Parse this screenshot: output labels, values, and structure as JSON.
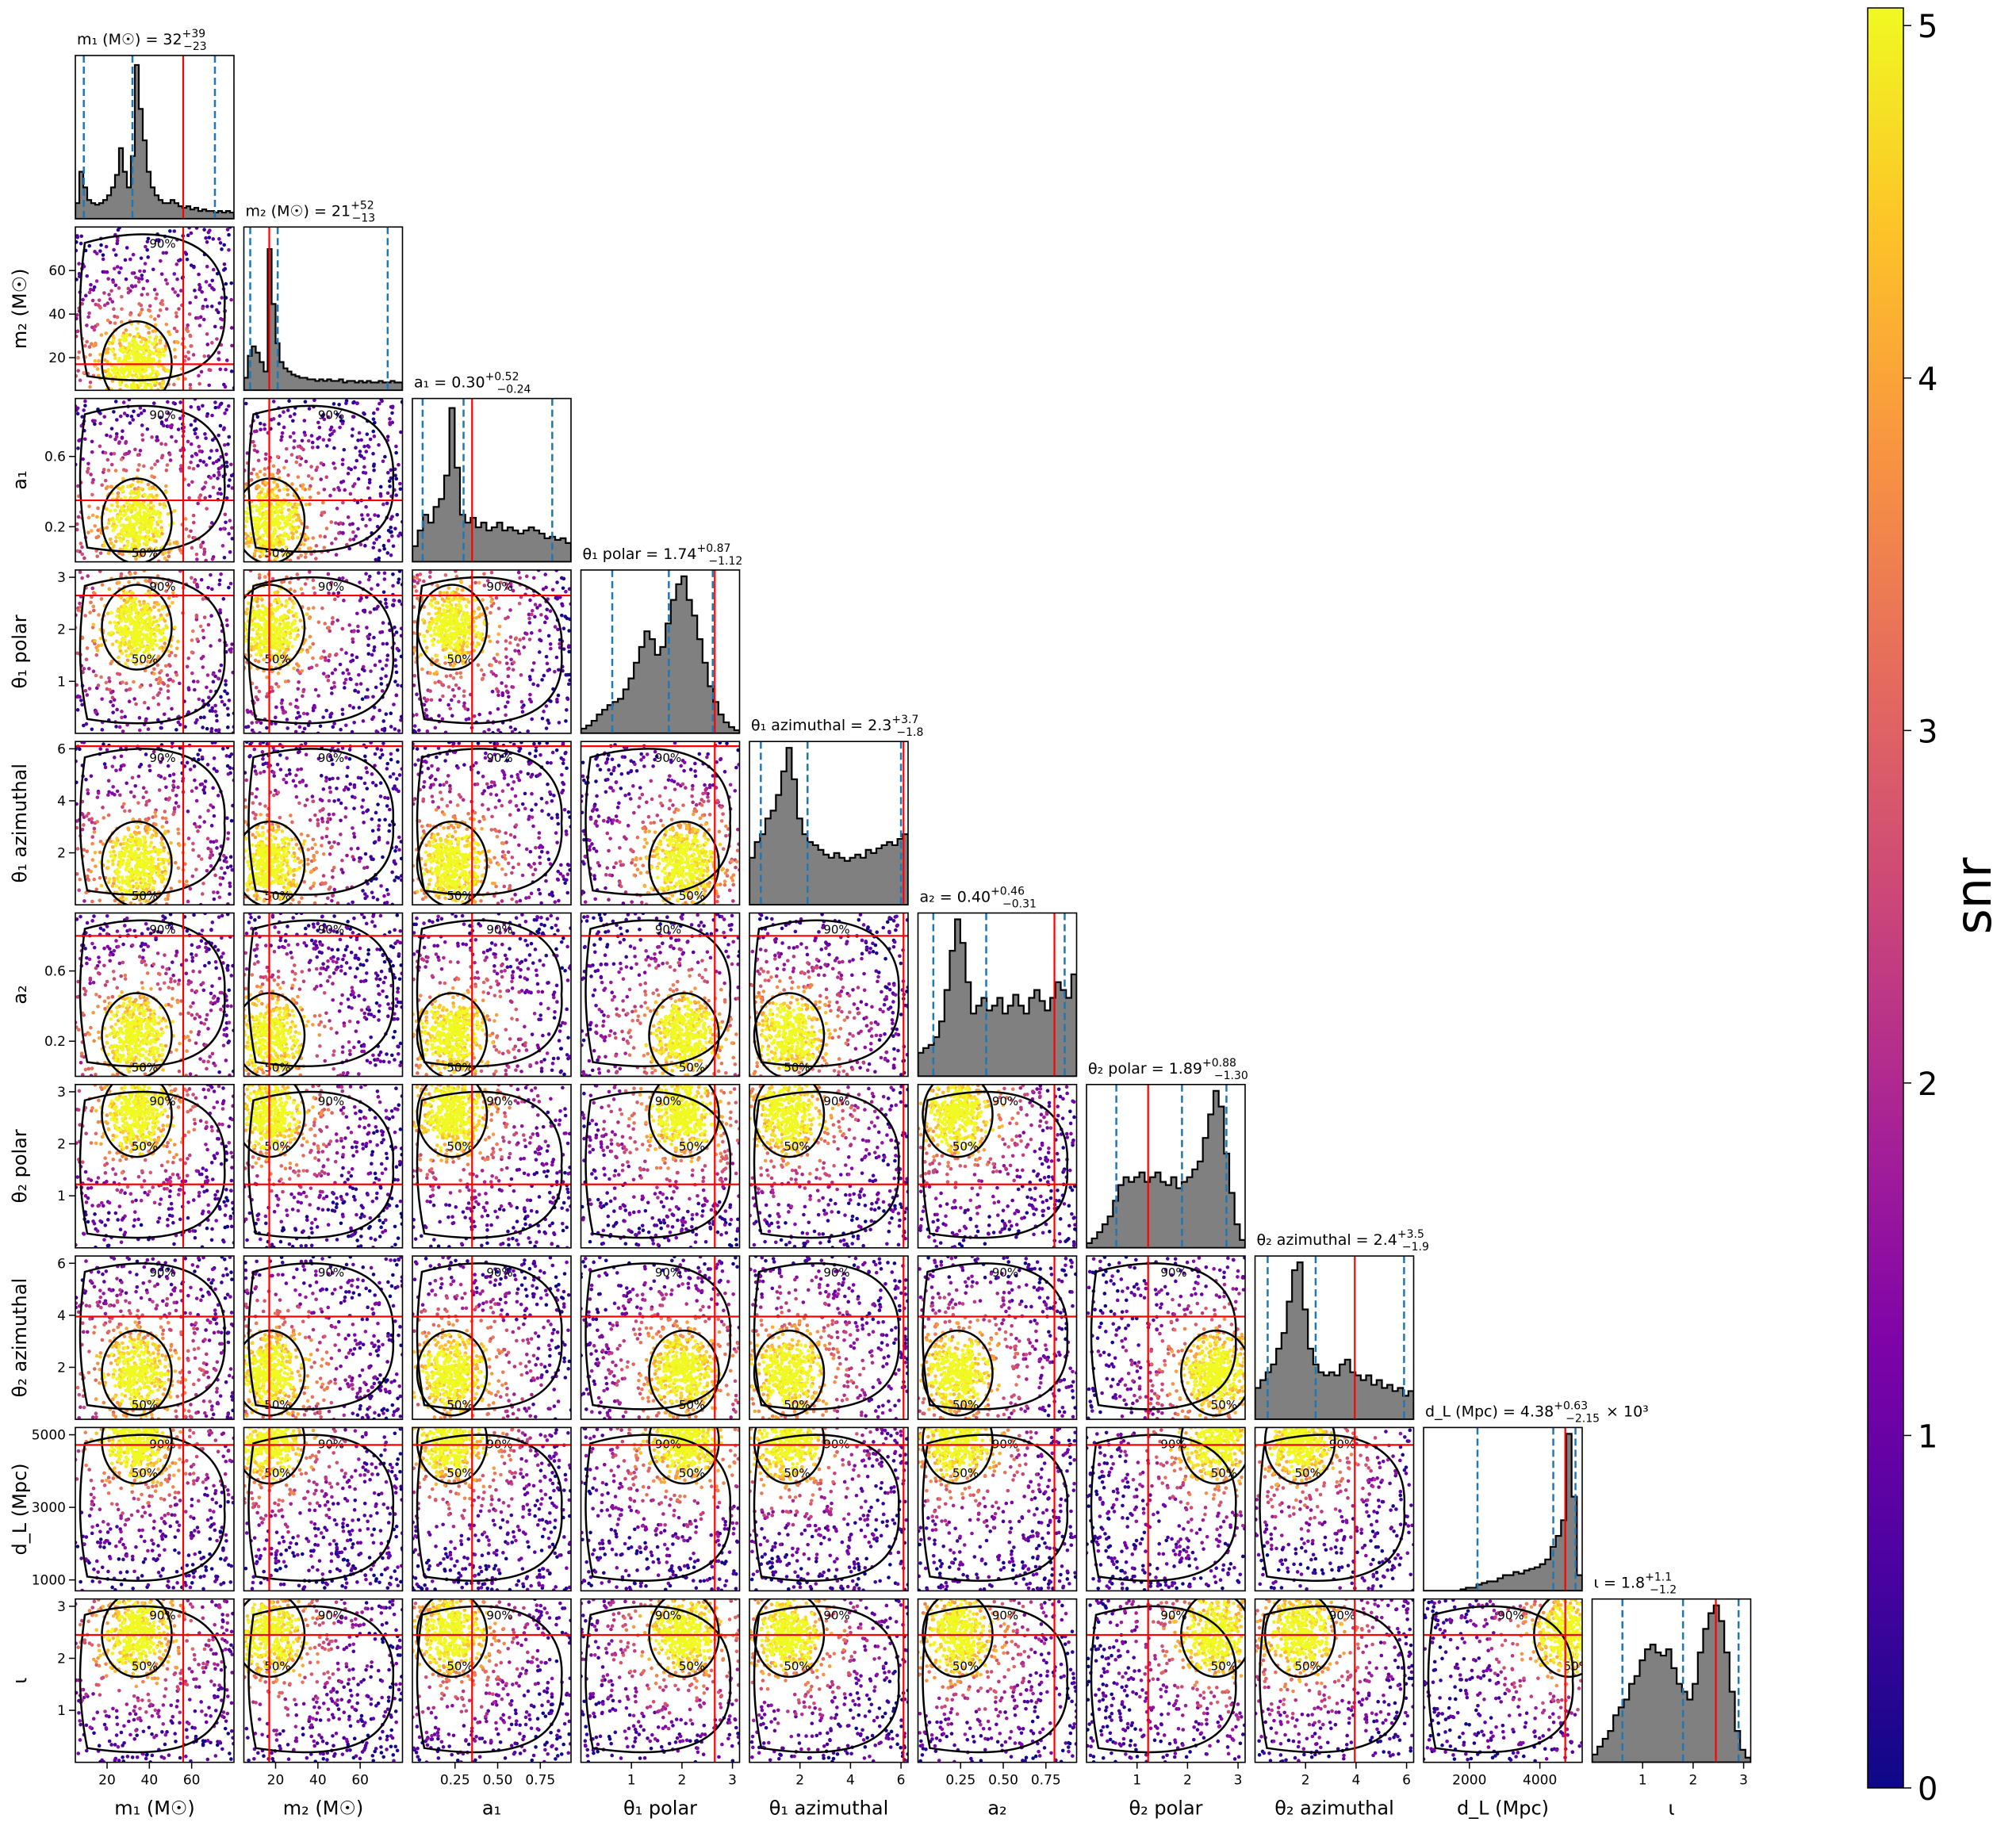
{
  "chart_data": {
    "type": "scatter",
    "subtype": "corner-plot",
    "scatter_color_variable": "snr",
    "colormap": "plasma",
    "colorbar": {
      "label": "snr",
      "range": [
        0,
        5.05
      ],
      "ticks": [
        "0",
        "1",
        "2",
        "3",
        "4",
        "5"
      ]
    },
    "contour_levels": [
      "50%",
      "90%"
    ],
    "histogram_color": "#808080",
    "credible_interval_line_color": "#1f77b4",
    "truth_line_color": "#ff0000",
    "parameters": [
      {
        "key": "m1",
        "axis_label": "m₁ (M☉)",
        "title": "m₁ (M☉) = 32",
        "sup": "+39",
        "sub": "−23",
        "range": [
          5,
          80
        ],
        "ticks": [
          20,
          40,
          60
        ],
        "tick_labels": [
          "20",
          "40",
          "60"
        ],
        "median": 32,
        "lower": 9,
        "upper": 71,
        "truth": 56,
        "hist": [
          0.1,
          0.3,
          0.2,
          0.12,
          0.1,
          0.09,
          0.1,
          0.12,
          0.15,
          0.2,
          0.28,
          0.45,
          0.3,
          0.2,
          0.4,
          0.98,
          0.7,
          0.5,
          0.3,
          0.2,
          0.15,
          0.12,
          0.1,
          0.1,
          0.12,
          0.1,
          0.08,
          0.07,
          0.08,
          0.06,
          0.07,
          0.05,
          0.06,
          0.05,
          0.05,
          0.04,
          0.05,
          0.04,
          0.05,
          0.04
        ]
      },
      {
        "key": "m2",
        "axis_label": "m₂ (M☉)",
        "title": "m₂ (M☉) = 21",
        "sup": "+52",
        "sub": "−13",
        "range": [
          5,
          80
        ],
        "ticks": [
          20,
          40,
          60
        ],
        "tick_labels": [
          "20",
          "40",
          "60"
        ],
        "median": 21,
        "lower": 8,
        "upper": 73,
        "truth": 17,
        "hist": [
          0.08,
          0.22,
          0.28,
          0.24,
          0.18,
          0.12,
          0.9,
          0.55,
          0.3,
          0.18,
          0.14,
          0.12,
          0.1,
          0.09,
          0.08,
          0.08,
          0.07,
          0.07,
          0.06,
          0.07,
          0.06,
          0.07,
          0.06,
          0.06,
          0.07,
          0.05,
          0.06,
          0.06,
          0.05,
          0.06,
          0.05,
          0.06,
          0.05,
          0.05,
          0.06,
          0.05,
          0.05,
          0.06,
          0.05,
          0.05
        ]
      },
      {
        "key": "a1",
        "axis_label": "a₁",
        "title": "a₁ = 0.30",
        "sup": "+0.52",
        "sub": "−0.24",
        "range": [
          0,
          0.93
        ],
        "ticks": [
          0.2,
          0.6
        ],
        "tick_labels": [
          "0.2",
          "0.6"
        ],
        "bottom_ticks": [
          0.25,
          0.5,
          0.75
        ],
        "bottom_tick_labels": [
          "0.25",
          "0.50",
          "0.75"
        ],
        "median": 0.3,
        "lower": 0.06,
        "upper": 0.82,
        "truth": 0.35,
        "hist": [
          0.1,
          0.2,
          0.3,
          0.25,
          0.35,
          0.4,
          0.55,
          0.98,
          0.6,
          0.3,
          0.25,
          0.28,
          0.22,
          0.25,
          0.2,
          0.22,
          0.25,
          0.2,
          0.22,
          0.2,
          0.18,
          0.2,
          0.22,
          0.2,
          0.18,
          0.15,
          0.16,
          0.14,
          0.15,
          0.12
        ]
      },
      {
        "key": "theta1_polar",
        "axis_label": "θ₁ polar",
        "title": "θ₁ polar = 1.74",
        "sup": "+0.87",
        "sub": "−1.12",
        "range": [
          0,
          3.14
        ],
        "ticks": [
          1,
          2,
          3
        ],
        "tick_labels": [
          "1",
          "2",
          "3"
        ],
        "median": 1.74,
        "lower": 0.62,
        "upper": 2.61,
        "truth": 2.65,
        "hist": [
          0.03,
          0.05,
          0.08,
          0.12,
          0.15,
          0.18,
          0.2,
          0.22,
          0.28,
          0.35,
          0.45,
          0.55,
          0.65,
          0.6,
          0.5,
          0.55,
          0.7,
          0.85,
          0.95,
          1.0,
          0.85,
          0.75,
          0.6,
          0.45,
          0.3,
          0.2,
          0.12,
          0.07,
          0.04,
          0.02
        ]
      },
      {
        "key": "theta1_azimuthal",
        "axis_label": "θ₁ azimuthal",
        "title": "θ₁ azimuthal = 2.3",
        "sup": "+3.7",
        "sub": "−1.8",
        "range": [
          0,
          6.28
        ],
        "ticks": [
          2,
          4,
          6
        ],
        "tick_labels": [
          "2",
          "4",
          "6"
        ],
        "median": 2.3,
        "lower": 0.45,
        "upper": 6.0,
        "truth": 6.1,
        "hist": [
          0.3,
          0.4,
          0.45,
          0.55,
          0.6,
          0.7,
          0.85,
          1.0,
          0.8,
          0.55,
          0.45,
          0.4,
          0.38,
          0.35,
          0.32,
          0.3,
          0.33,
          0.3,
          0.28,
          0.3,
          0.32,
          0.3,
          0.35,
          0.33,
          0.36,
          0.38,
          0.4,
          0.38,
          0.42,
          0.45
        ]
      },
      {
        "key": "a2",
        "axis_label": "a₂",
        "title": "a₂ = 0.40",
        "sup": "+0.46",
        "sub": "−0.31",
        "range": [
          0,
          0.93
        ],
        "ticks": [
          0.2,
          0.6
        ],
        "tick_labels": [
          "0.2",
          "0.6"
        ],
        "bottom_ticks": [
          0.25,
          0.5,
          0.75
        ],
        "bottom_tick_labels": [
          "0.25",
          "0.50",
          "0.75"
        ],
        "median": 0.4,
        "lower": 0.09,
        "upper": 0.86,
        "truth": 0.8,
        "hist": [
          0.15,
          0.18,
          0.2,
          0.25,
          0.35,
          0.55,
          0.8,
          1.0,
          0.85,
          0.6,
          0.4,
          0.45,
          0.5,
          0.42,
          0.45,
          0.5,
          0.4,
          0.45,
          0.52,
          0.45,
          0.4,
          0.5,
          0.55,
          0.48,
          0.42,
          0.5,
          0.6,
          0.55,
          0.5,
          0.65
        ]
      },
      {
        "key": "theta2_polar",
        "axis_label": "θ₂ polar",
        "title": "θ₂ polar = 1.89",
        "sup": "+0.88",
        "sub": "−1.30",
        "range": [
          0,
          3.14
        ],
        "ticks": [
          1,
          2,
          3
        ],
        "tick_labels": [
          "1",
          "2",
          "3"
        ],
        "median": 1.89,
        "lower": 0.59,
        "upper": 2.77,
        "truth": 1.22,
        "hist": [
          0.03,
          0.06,
          0.1,
          0.15,
          0.2,
          0.3,
          0.4,
          0.45,
          0.42,
          0.45,
          0.48,
          0.42,
          0.45,
          0.48,
          0.42,
          0.4,
          0.45,
          0.38,
          0.42,
          0.45,
          0.5,
          0.55,
          0.7,
          0.85,
          1.0,
          0.9,
          0.6,
          0.35,
          0.15,
          0.05
        ]
      },
      {
        "key": "theta2_azimuthal",
        "axis_label": "θ₂ azimuthal",
        "title": "θ₂ azimuthal = 2.4",
        "sup": "+3.5",
        "sub": "−1.9",
        "range": [
          0,
          6.28
        ],
        "ticks": [
          2,
          4,
          6
        ],
        "tick_labels": [
          "2",
          "4",
          "6"
        ],
        "median": 2.4,
        "lower": 0.5,
        "upper": 5.9,
        "truth": 3.95,
        "hist": [
          0.2,
          0.25,
          0.3,
          0.35,
          0.45,
          0.55,
          0.75,
          0.95,
          1.0,
          0.7,
          0.45,
          0.35,
          0.3,
          0.28,
          0.3,
          0.28,
          0.35,
          0.38,
          0.3,
          0.28,
          0.25,
          0.28,
          0.22,
          0.25,
          0.2,
          0.22,
          0.18,
          0.2,
          0.15,
          0.18
        ]
      },
      {
        "key": "dL",
        "axis_label": "d_L (Mpc)",
        "title": "d_L (Mpc) = 4.38",
        "sup": "+0.63",
        "sub": "−2.15",
        "title_suffix": "× 10³",
        "range": [
          700,
          5200
        ],
        "ticks": [
          1000,
          3000,
          5000
        ],
        "tick_labels": [
          "1000",
          "3000",
          "5000"
        ],
        "bottom_ticks": [
          2000,
          4000
        ],
        "bottom_tick_labels": [
          "2000",
          "4000"
        ],
        "median": 4380,
        "lower": 2230,
        "upper": 5010,
        "truth": 4720,
        "hist": [
          0.0,
          0.0,
          0.0,
          0.0,
          0.0,
          0.0,
          0.0,
          0.01,
          0.02,
          0.02,
          0.04,
          0.05,
          0.06,
          0.06,
          0.08,
          0.1,
          0.1,
          0.12,
          0.11,
          0.13,
          0.14,
          0.15,
          0.17,
          0.2,
          0.28,
          0.35,
          0.45,
          1.0,
          0.6,
          0.1
        ]
      },
      {
        "key": "iota",
        "axis_label": "ι",
        "title": "ι = 1.8",
        "sup": "+1.1",
        "sub": "−1.2",
        "range": [
          0,
          3.14
        ],
        "ticks": [
          1,
          2,
          3
        ],
        "tick_labels": [
          "1",
          "2",
          "3"
        ],
        "median": 1.8,
        "lower": 0.6,
        "upper": 2.9,
        "truth": 2.45,
        "hist": [
          0.05,
          0.1,
          0.15,
          0.2,
          0.3,
          0.35,
          0.4,
          0.5,
          0.55,
          0.65,
          0.72,
          0.75,
          0.7,
          0.68,
          0.72,
          0.6,
          0.5,
          0.45,
          0.4,
          0.5,
          0.7,
          0.85,
          0.95,
          1.0,
          0.9,
          0.7,
          0.45,
          0.2,
          0.08,
          0.03
        ]
      }
    ]
  }
}
